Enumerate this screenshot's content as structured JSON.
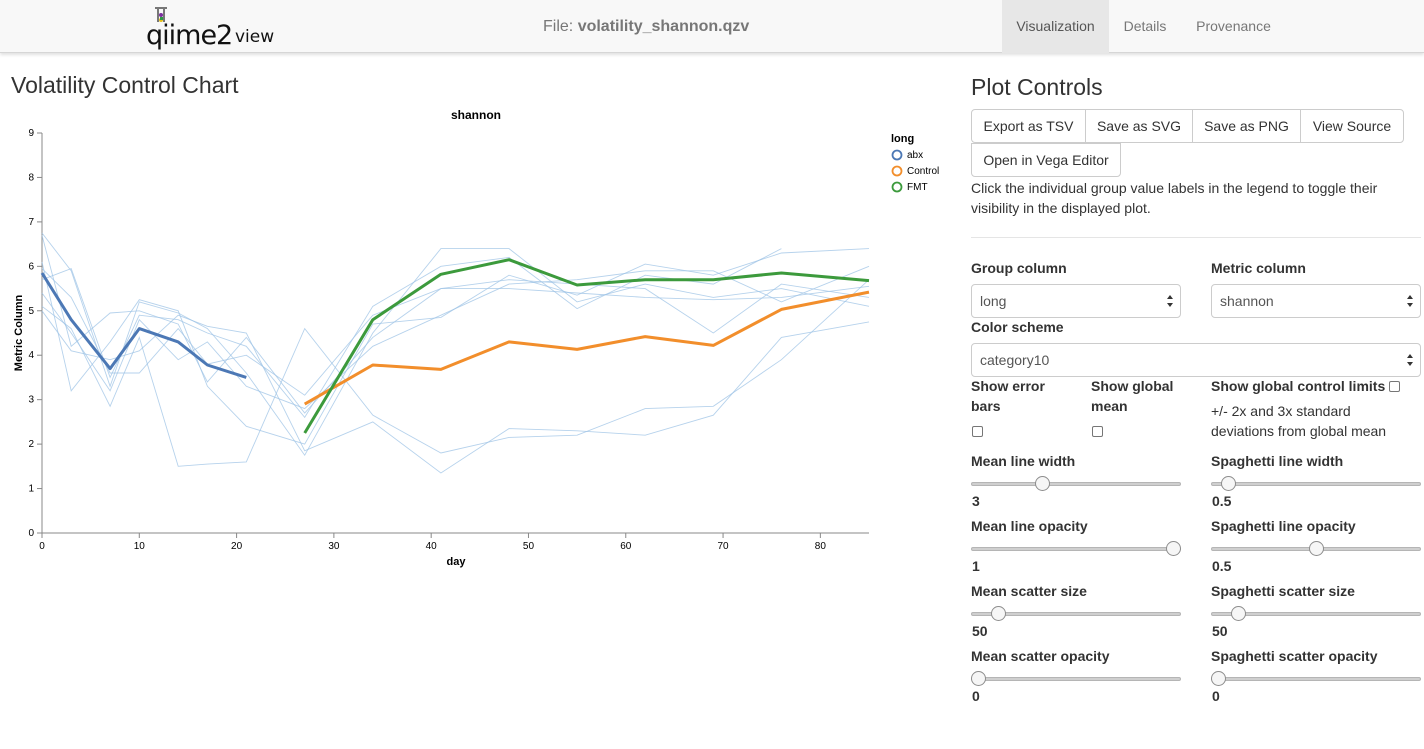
{
  "header": {
    "logo_main": "qiime2",
    "logo_sub": "view",
    "file_prefix": "File:",
    "file_name": "volatility_shannon.qzv",
    "nav": [
      {
        "label": "Visualization",
        "active": true
      },
      {
        "label": "Details",
        "active": false
      },
      {
        "label": "Provenance",
        "active": false
      }
    ]
  },
  "main": {
    "chart_title": "Volatility Control Chart"
  },
  "chart_data": {
    "type": "line",
    "title": "shannon",
    "xlabel": "day",
    "ylabel": "Metric Column",
    "xlim": [
      0,
      85
    ],
    "ylim": [
      0,
      9
    ],
    "xticks": [
      0,
      10,
      20,
      30,
      40,
      50,
      60,
      70,
      80
    ],
    "yticks": [
      0,
      1,
      2,
      3,
      4,
      5,
      6,
      7,
      8,
      9
    ],
    "legend": {
      "title": "long",
      "placement": "top-right",
      "items": [
        {
          "label": "abx",
          "color": "#4c78b5"
        },
        {
          "label": "Control",
          "color": "#f28e2b"
        },
        {
          "label": "FMT",
          "color": "#3c9a3c"
        }
      ]
    },
    "series": [
      {
        "name": "abx",
        "color": "#4c78b5",
        "points": [
          [
            0,
            5.85
          ],
          [
            3,
            4.8
          ],
          [
            7,
            3.7
          ],
          [
            10,
            4.6
          ],
          [
            14,
            4.3
          ],
          [
            17,
            3.78
          ],
          [
            21,
            3.5
          ]
        ]
      },
      {
        "name": "Control",
        "color": "#f28e2b",
        "points": [
          [
            27,
            2.9
          ],
          [
            34,
            3.78
          ],
          [
            41,
            3.68
          ],
          [
            48,
            4.3
          ],
          [
            55,
            4.13
          ],
          [
            62,
            4.42
          ],
          [
            69,
            4.22
          ],
          [
            76,
            5.03
          ],
          [
            85,
            5.42
          ]
        ]
      },
      {
        "name": "FMT",
        "color": "#3c9a3c",
        "points": [
          [
            27,
            2.25
          ],
          [
            34,
            4.8
          ],
          [
            41,
            5.82
          ],
          [
            48,
            6.15
          ],
          [
            55,
            5.58
          ],
          [
            62,
            5.7
          ],
          [
            69,
            5.7
          ],
          [
            76,
            5.85
          ],
          [
            85,
            5.68
          ]
        ]
      }
    ],
    "spaghetti": [
      [
        [
          0,
          6.75
        ],
        [
          3,
          5.9
        ],
        [
          7,
          3.3
        ],
        [
          10,
          5.2
        ],
        [
          14,
          4.95
        ],
        [
          17,
          4.6
        ],
        [
          21,
          3.6
        ],
        [
          27,
          1.75
        ],
        [
          34,
          4.5
        ],
        [
          41,
          6.4
        ],
        [
          48,
          6.4
        ],
        [
          55,
          5.2
        ],
        [
          62,
          5.6
        ],
        [
          69,
          5.3
        ],
        [
          76,
          5.5
        ],
        [
          85,
          5.1
        ]
      ],
      [
        [
          0,
          5.7
        ],
        [
          3,
          5.95
        ],
        [
          7,
          3.5
        ],
        [
          10,
          4.9
        ],
        [
          14,
          4.8
        ],
        [
          17,
          4.5
        ],
        [
          21,
          4.2
        ],
        [
          27,
          2.6
        ],
        [
          34,
          5.1
        ],
        [
          41,
          6.0
        ],
        [
          48,
          6.2
        ],
        [
          55,
          5.05
        ],
        [
          62,
          5.8
        ],
        [
          69,
          5.6
        ],
        [
          76,
          6.4
        ]
      ],
      [
        [
          0,
          5.1
        ],
        [
          3,
          4.6
        ],
        [
          7,
          2.85
        ],
        [
          10,
          4.4
        ],
        [
          14,
          1.5
        ],
        [
          17,
          1.55
        ],
        [
          21,
          1.6
        ],
        [
          27,
          4.6
        ],
        [
          34,
          2.65
        ],
        [
          41,
          1.8
        ],
        [
          48,
          2.15
        ],
        [
          55,
          2.2
        ],
        [
          62,
          2.8
        ],
        [
          69,
          2.85
        ],
        [
          76,
          3.9
        ],
        [
          85,
          5.7
        ]
      ],
      [
        [
          0,
          6.1
        ],
        [
          3,
          3.2
        ],
        [
          7,
          4.3
        ],
        [
          10,
          5.25
        ],
        [
          14,
          5.0
        ],
        [
          17,
          3.3
        ],
        [
          21,
          2.4
        ],
        [
          27,
          2.0
        ],
        [
          34,
          4.7
        ],
        [
          41,
          4.85
        ],
        [
          48,
          5.8
        ],
        [
          55,
          5.35
        ],
        [
          62,
          6.05
        ],
        [
          69,
          5.8
        ],
        [
          76,
          6.3
        ],
        [
          85,
          6.4
        ]
      ],
      [
        [
          0,
          5.0
        ],
        [
          3,
          4.1
        ],
        [
          7,
          3.9
        ],
        [
          10,
          4.1
        ],
        [
          14,
          4.9
        ],
        [
          17,
          4.65
        ],
        [
          21,
          4.5
        ],
        [
          27,
          1.85
        ],
        [
          34,
          2.5
        ],
        [
          41,
          1.35
        ],
        [
          48,
          2.35
        ],
        [
          55,
          2.3
        ],
        [
          62,
          2.2
        ],
        [
          69,
          2.65
        ],
        [
          76,
          4.4
        ],
        [
          85,
          4.75
        ]
      ],
      [
        [
          0,
          5.95
        ],
        [
          3,
          5.3
        ],
        [
          7,
          3.6
        ],
        [
          10,
          3.6
        ],
        [
          14,
          4.6
        ],
        [
          17,
          3.8
        ],
        [
          21,
          4.0
        ],
        [
          27,
          3.1
        ],
        [
          34,
          4.9
        ],
        [
          41,
          5.5
        ],
        [
          48,
          5.5
        ],
        [
          55,
          5.4
        ],
        [
          62,
          5.3
        ],
        [
          69,
          5.25
        ],
        [
          76,
          5.3
        ],
        [
          85,
          5.55
        ]
      ],
      [
        [
          0,
          6.7
        ],
        [
          3,
          4.2
        ],
        [
          7,
          4.95
        ],
        [
          10,
          5.0
        ],
        [
          14,
          4.7
        ],
        [
          17,
          3.4
        ],
        [
          21,
          4.4
        ],
        [
          27,
          2.7
        ],
        [
          34,
          4.4
        ],
        [
          41,
          5.5
        ],
        [
          48,
          5.7
        ],
        [
          55,
          5.6
        ],
        [
          62,
          5.5
        ],
        [
          69,
          4.5
        ],
        [
          76,
          5.6
        ],
        [
          85,
          5.3
        ]
      ],
      [
        [
          0,
          5.4
        ],
        [
          3,
          4.5
        ],
        [
          7,
          3.2
        ],
        [
          10,
          4.8
        ],
        [
          14,
          3.9
        ],
        [
          17,
          4.3
        ],
        [
          21,
          3.3
        ],
        [
          27,
          2.8
        ],
        [
          34,
          4.2
        ],
        [
          41,
          4.9
        ],
        [
          48,
          5.6
        ],
        [
          55,
          5.7
        ],
        [
          62,
          5.9
        ],
        [
          69,
          5.9
        ],
        [
          76,
          5.2
        ],
        [
          85,
          6.0
        ]
      ]
    ]
  },
  "controls": {
    "title": "Plot Controls",
    "buttons": {
      "export_tsv": "Export as TSV",
      "save_svg": "Save as SVG",
      "save_png": "Save as PNG",
      "view_source": "View Source",
      "open_vega": "Open in Vega Editor"
    },
    "help": "Click the individual group value labels in the legend to toggle their visibility in the displayed plot.",
    "group_column": {
      "label": "Group column",
      "value": "long"
    },
    "metric_column": {
      "label": "Metric column",
      "value": "shannon"
    },
    "color_scheme": {
      "label": "Color scheme",
      "value": "category10"
    },
    "show_error_bars": {
      "label_1": "Show error",
      "label_2": "bars",
      "checked": false
    },
    "show_global_mean": {
      "label_1": "Show global",
      "label_2": "mean",
      "checked": false
    },
    "show_control_limits": {
      "label": "Show global control limits",
      "desc_1": "+/- 2x and 3x standard",
      "desc_2": "deviations from global mean",
      "checked": false
    },
    "mean_line_width": {
      "label": "Mean line width",
      "value": "3",
      "level": 0.33
    },
    "spaghetti_line_width": {
      "label": "Spaghetti line width",
      "value": "0.5",
      "level": 0.05
    },
    "mean_line_opacity": {
      "label": "Mean line opacity",
      "value": "1",
      "level": 1.0
    },
    "spaghetti_line_opacity": {
      "label": "Spaghetti line opacity",
      "value": "0.5",
      "level": 0.5
    },
    "mean_scatter_size": {
      "label": "Mean scatter size",
      "value": "50",
      "level": 0.1
    },
    "spaghetti_scatter_size": {
      "label": "Spaghetti scatter size",
      "value": "50",
      "level": 0.1
    },
    "mean_scatter_opacity": {
      "label": "Mean scatter opacity",
      "value": "0",
      "level": 0.0
    },
    "spaghetti_scatter_opacity": {
      "label": "Spaghetti scatter opacity",
      "value": "0",
      "level": 0.0
    }
  }
}
